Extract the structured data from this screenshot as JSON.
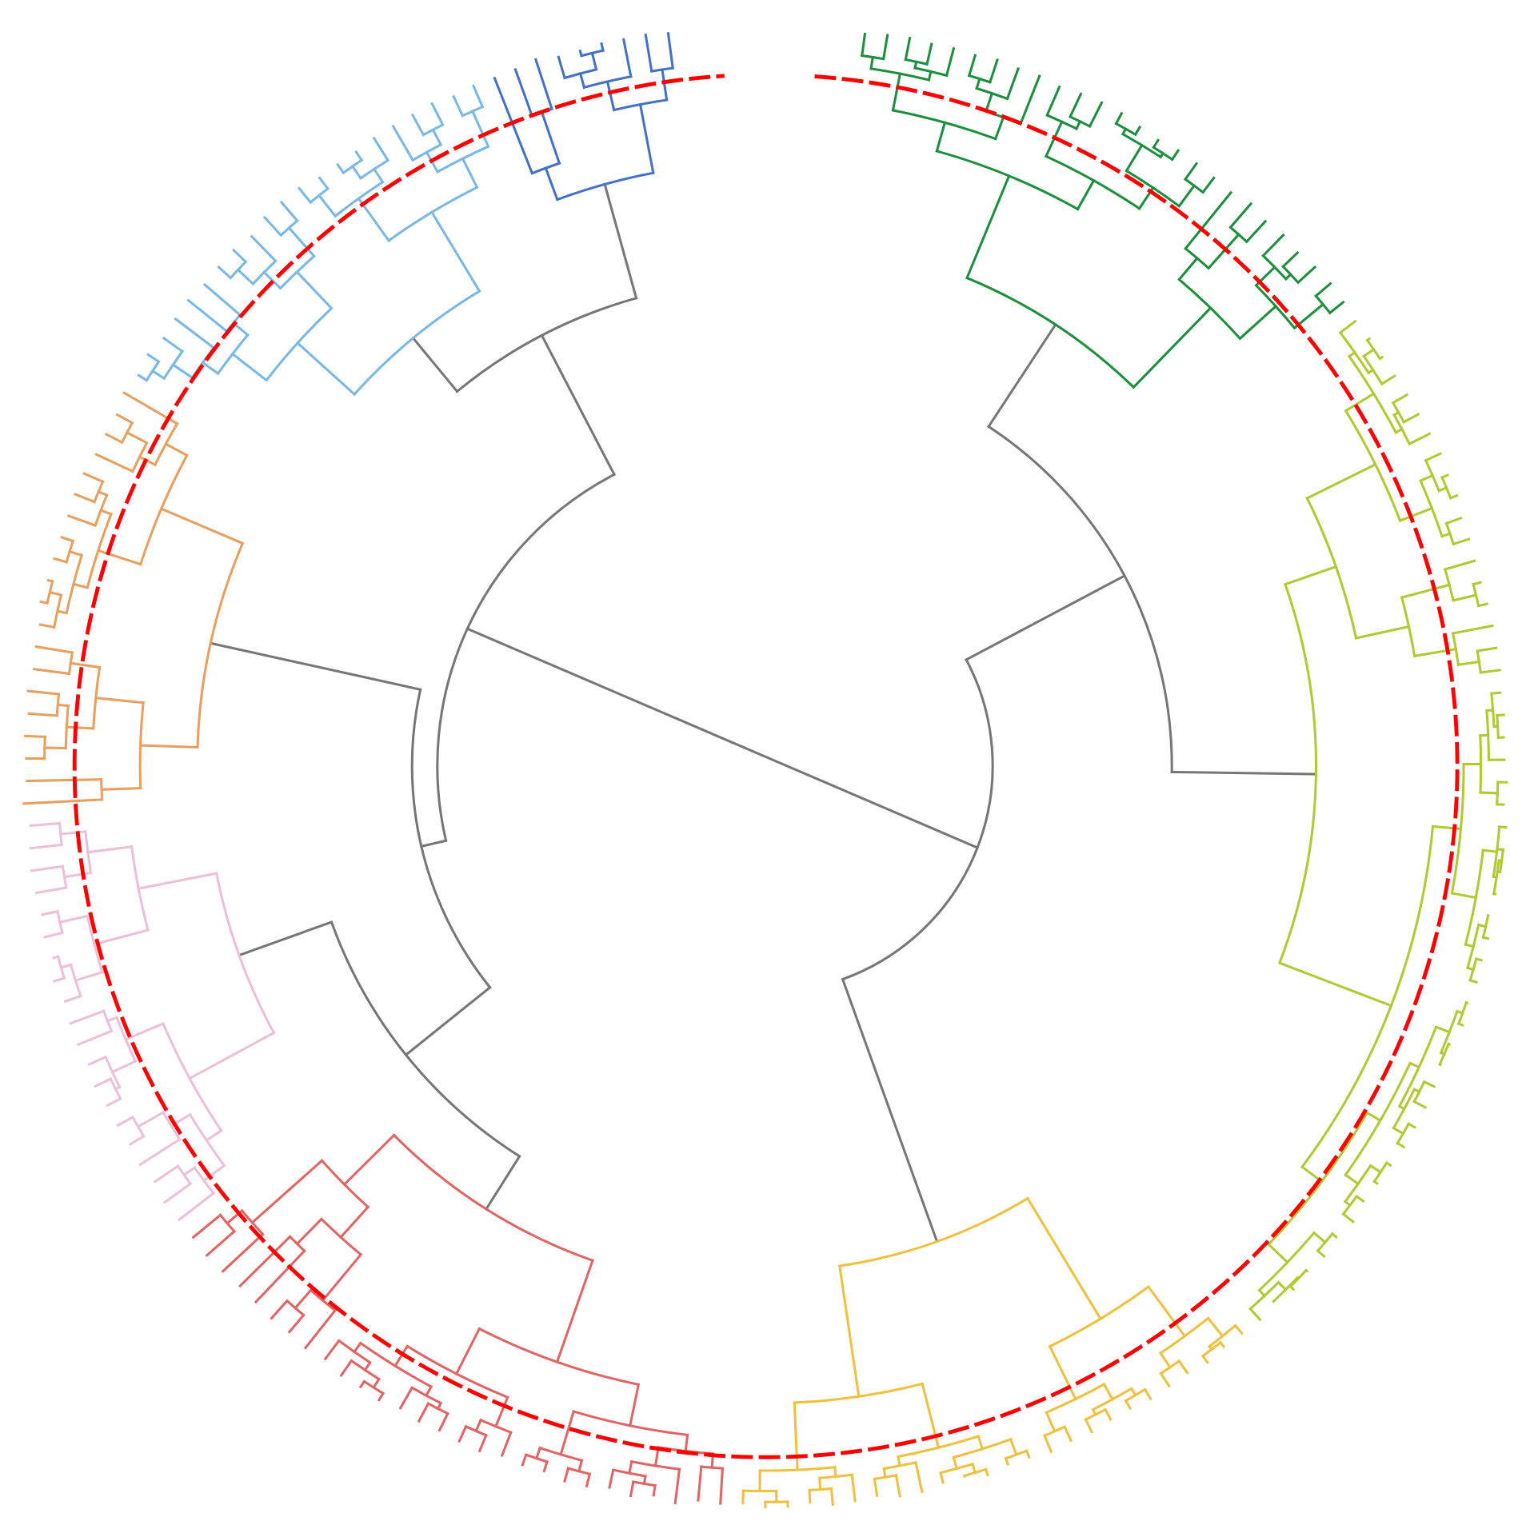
{
  "chart_data": {
    "type": "dendrogram",
    "layout": "circular",
    "title": "",
    "max_height": 10,
    "threshold_height": 0.7,
    "threshold_color": "#ff0000",
    "above_threshold_color": "#777777",
    "clusters": [
      {
        "name": "green",
        "color": "#1e8f3e",
        "leaves": 26,
        "height": 2.9
      },
      {
        "name": "yellow-green",
        "color": "#b3c934",
        "leaves": 50,
        "height": 2.6
      },
      {
        "name": "yellow",
        "color": "#f0c040",
        "leaves": 25,
        "height": 3.2
      },
      {
        "name": "red",
        "color": "#e06666",
        "leaves": 28,
        "height": 2.95
      },
      {
        "name": "pink",
        "color": "#ecc0d8",
        "leaves": 20,
        "height": 2.47
      },
      {
        "name": "orange",
        "color": "#e8a060",
        "leaves": 20,
        "height": 2.35
      },
      {
        "name": "light-blue",
        "color": "#7ab8e6",
        "leaves": 21,
        "height": 2.54
      },
      {
        "name": "dark-blue",
        "color": "#4472c4",
        "leaves": 9,
        "height": 1.88
      }
    ],
    "tree": {
      "height": 10,
      "children": [
        {
          "height": 6.95,
          "children": [
            {
              "height": 4.54,
              "children": [
                {
                  "cluster": "green"
                },
                {
                  "cluster": "yellow-green"
                }
              ]
            },
            {
              "cluster": "yellow"
            }
          ]
        },
        {
          "height": 5.58,
          "children": [
            {
              "height": 5.24,
              "children": [
                {
                  "height": 3.79,
                  "children": [
                    {
                      "cluster": "red"
                    },
                    {
                      "cluster": "pink"
                    }
                  ]
                },
                {
                  "cluster": "orange"
                }
              ]
            },
            {
              "height": 3.47,
              "children": [
                {
                  "cluster": "light-blue"
                },
                {
                  "cluster": "dark-blue"
                }
              ]
            }
          ]
        }
      ]
    }
  }
}
